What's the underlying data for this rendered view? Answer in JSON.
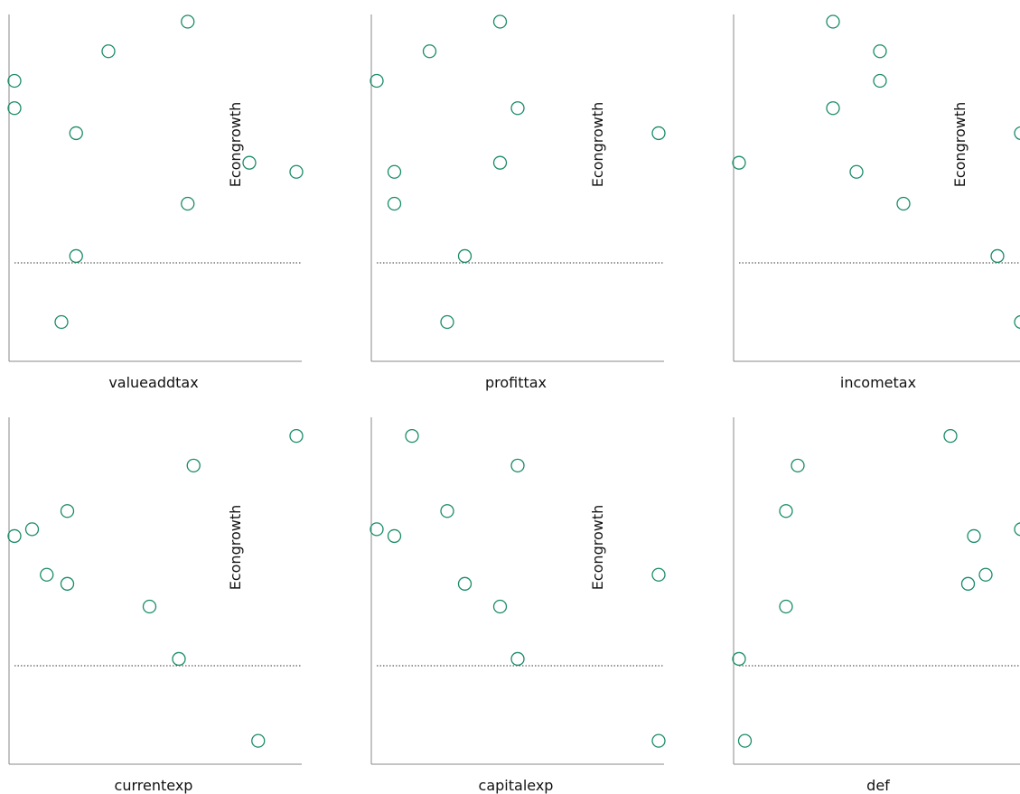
{
  "chart_data": {
    "type": "scatter",
    "point_color": "#1a8c6a",
    "reference_line": {
      "y": 0,
      "style": "dotted"
    },
    "panels": [
      {
        "xlabel": "valueaddtax",
        "ylabel": "Econgrowth",
        "points": [
          {
            "x": 0.02,
            "y": 0.8
          },
          {
            "x": 0.02,
            "y": 0.68
          },
          {
            "x": 0.18,
            "y": -0.26
          },
          {
            "x": 0.23,
            "y": 0.03
          },
          {
            "x": 0.23,
            "y": 0.57
          },
          {
            "x": 0.34,
            "y": 0.93
          },
          {
            "x": 0.61,
            "y": 1.06
          },
          {
            "x": 0.61,
            "y": 0.26
          },
          {
            "x": 0.82,
            "y": 0.44
          },
          {
            "x": 0.98,
            "y": 0.4
          }
        ]
      },
      {
        "xlabel": "profittax",
        "ylabel": "Econgrowth",
        "points": [
          {
            "x": 0.02,
            "y": 0.8
          },
          {
            "x": 0.08,
            "y": 0.4
          },
          {
            "x": 0.08,
            "y": 0.26
          },
          {
            "x": 0.2,
            "y": 0.93
          },
          {
            "x": 0.26,
            "y": -0.26
          },
          {
            "x": 0.32,
            "y": 0.03
          },
          {
            "x": 0.44,
            "y": 1.06
          },
          {
            "x": 0.44,
            "y": 0.44
          },
          {
            "x": 0.5,
            "y": 0.68
          },
          {
            "x": 0.98,
            "y": 0.57
          }
        ]
      },
      {
        "xlabel": "incometax",
        "ylabel": "Econgrowth",
        "points": [
          {
            "x": 0.02,
            "y": 0.44
          },
          {
            "x": 0.34,
            "y": 1.06
          },
          {
            "x": 0.34,
            "y": 0.68
          },
          {
            "x": 0.42,
            "y": 0.4
          },
          {
            "x": 0.5,
            "y": 0.93
          },
          {
            "x": 0.5,
            "y": 0.8
          },
          {
            "x": 0.58,
            "y": 0.26
          },
          {
            "x": 0.9,
            "y": 0.03
          },
          {
            "x": 0.98,
            "y": 0.57
          },
          {
            "x": 0.98,
            "y": -0.26
          }
        ]
      },
      {
        "xlabel": "currentexp",
        "ylabel": "Econgrowth",
        "points": [
          {
            "x": 0.02,
            "y": 0.57
          },
          {
            "x": 0.08,
            "y": 0.6
          },
          {
            "x": 0.13,
            "y": 0.4
          },
          {
            "x": 0.2,
            "y": 0.68
          },
          {
            "x": 0.2,
            "y": 0.36
          },
          {
            "x": 0.48,
            "y": 0.26
          },
          {
            "x": 0.58,
            "y": 0.03
          },
          {
            "x": 0.63,
            "y": 0.88
          },
          {
            "x": 0.85,
            "y": -0.33
          },
          {
            "x": 0.98,
            "y": 1.01
          }
        ]
      },
      {
        "xlabel": "capitalexp",
        "ylabel": "Econgrowth",
        "points": [
          {
            "x": 0.02,
            "y": 0.6
          },
          {
            "x": 0.08,
            "y": 0.57
          },
          {
            "x": 0.14,
            "y": 1.01
          },
          {
            "x": 0.26,
            "y": 0.68
          },
          {
            "x": 0.32,
            "y": 0.36
          },
          {
            "x": 0.44,
            "y": 0.26
          },
          {
            "x": 0.5,
            "y": 0.88
          },
          {
            "x": 0.5,
            "y": 0.03
          },
          {
            "x": 0.98,
            "y": 0.4
          },
          {
            "x": 0.98,
            "y": -0.33
          }
        ]
      },
      {
        "xlabel": "def",
        "ylabel": "",
        "points": [
          {
            "x": 0.02,
            "y": 0.03
          },
          {
            "x": 0.04,
            "y": -0.33
          },
          {
            "x": 0.18,
            "y": 0.68
          },
          {
            "x": 0.18,
            "y": 0.26
          },
          {
            "x": 0.22,
            "y": 0.88
          },
          {
            "x": 0.74,
            "y": 1.01
          },
          {
            "x": 0.8,
            "y": 0.36
          },
          {
            "x": 0.82,
            "y": 0.57
          },
          {
            "x": 0.86,
            "y": 0.4
          },
          {
            "x": 0.98,
            "y": 0.6
          }
        ]
      }
    ]
  }
}
